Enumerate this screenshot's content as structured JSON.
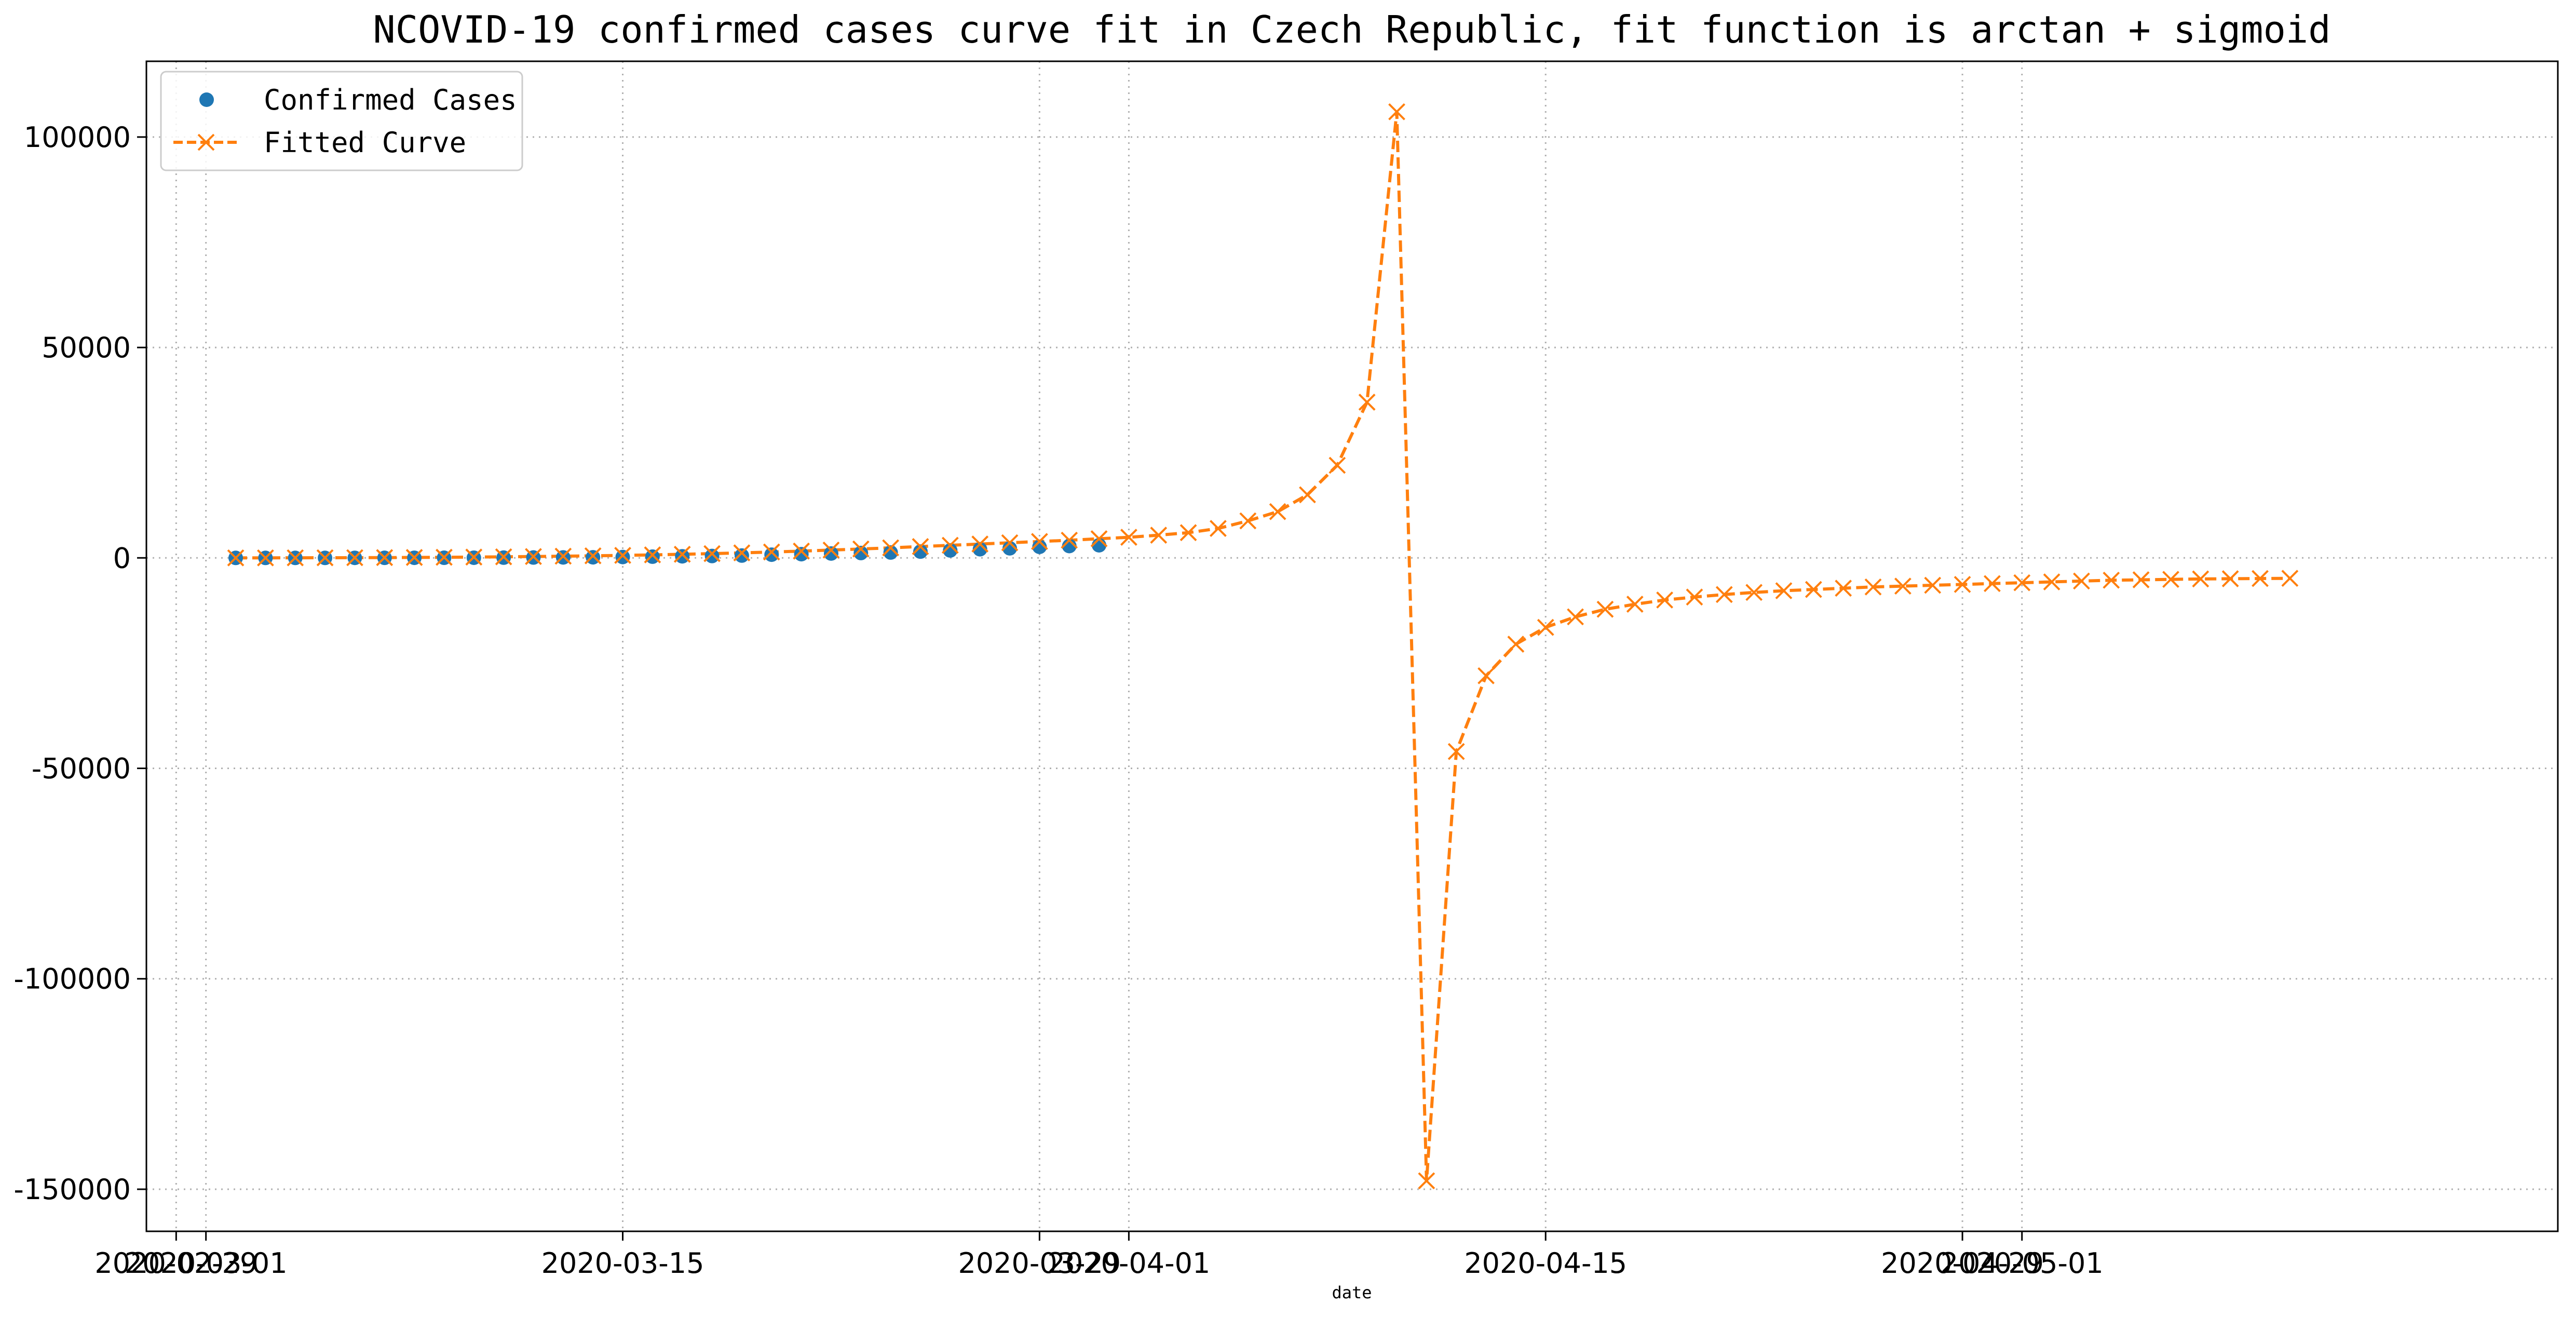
{
  "chart_data": {
    "type": "line",
    "title": "NCOVID-19 confirmed cases curve fit in Czech Republic, fit function is arctan + sigmoid",
    "xlabel": "date",
    "ylabel": "",
    "x_start": "2020-03-02",
    "xlim": [
      "2020-02-28",
      "2020-05-19"
    ],
    "ylim": [
      -160000,
      118000
    ],
    "x_ticks": [
      "2020-02-29",
      "2020-03-01",
      "2020-03-15",
      "2020-03-29",
      "2020-04-01",
      "2020-04-15",
      "2020-04-29",
      "2020-05-01"
    ],
    "y_ticks": [
      -150000,
      -100000,
      -50000,
      0,
      50000,
      100000
    ],
    "grid": true,
    "legend_position": "top-left",
    "series": [
      {
        "name": "Confirmed Cases",
        "marker": "circle",
        "line": "none",
        "color": "#1f77b4",
        "values": [
          3,
          3,
          5,
          5,
          8,
          19,
          26,
          32,
          40,
          63,
          94,
          116,
          150,
          214,
          298,
          383,
          450,
          560,
          765,
          889,
          1047,
          1161,
          1287,
          1497,
          1775,
          2062,
          2279,
          2631,
          2817,
          3001
        ]
      },
      {
        "name": "Fitted Curve",
        "marker": "x",
        "line": "dashed",
        "color": "#ff7f0e",
        "values": [
          5,
          10,
          20,
          35,
          55,
          80,
          110,
          150,
          200,
          260,
          330,
          410,
          500,
          600,
          720,
          860,
          1020,
          1200,
          1400,
          1620,
          1860,
          2120,
          2400,
          2700,
          3000,
          3300,
          3600,
          3900,
          4200,
          4550,
          4900,
          5400,
          6000,
          7000,
          8800,
          11000,
          15000,
          22000,
          37000,
          106000,
          -148000,
          -46000,
          -28000,
          -20500,
          -16500,
          -14000,
          -12200,
          -11000,
          -10000,
          -9300,
          -8700,
          -8200,
          -7800,
          -7500,
          -7200,
          -6900,
          -6700,
          -6500,
          -6300,
          -6100,
          -5900,
          -5700,
          -5500,
          -5300,
          -5200,
          -5100,
          -5000,
          -4950,
          -4900,
          -4850
        ]
      }
    ]
  }
}
